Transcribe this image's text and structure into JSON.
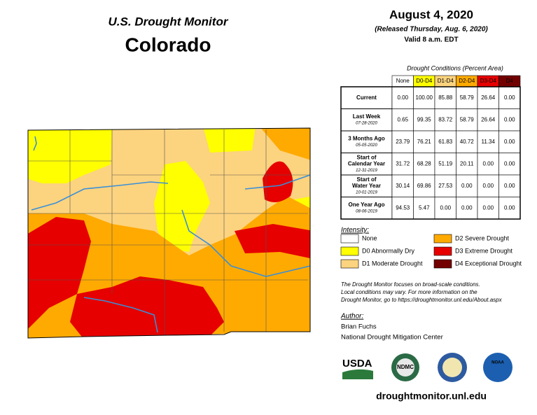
{
  "header": {
    "title": "U.S. Drought Monitor",
    "state": "Colorado"
  },
  "date": {
    "title": "August 4, 2020",
    "released": "(Released Thursday, Aug. 6, 2020)",
    "valid": "Valid 8 a.m. EDT"
  },
  "table": {
    "caption": "Drought Conditions (Percent Area)",
    "columns": [
      "None",
      "D0-D4",
      "D1-D4",
      "D2-D4",
      "D3-D4",
      "D4"
    ],
    "rows": [
      {
        "label": [
          "Current"
        ],
        "values": [
          "0.00",
          "100.00",
          "85.88",
          "58.79",
          "26.64",
          "0.00"
        ]
      },
      {
        "label": [
          "Last Week"
        ],
        "date": "07-28-2020",
        "values": [
          "0.65",
          "99.35",
          "83.72",
          "58.79",
          "26.64",
          "0.00"
        ]
      },
      {
        "label": [
          "3 Months Ago"
        ],
        "date": "05-05-2020",
        "values": [
          "23.79",
          "76.21",
          "61.83",
          "40.72",
          "11.34",
          "0.00"
        ]
      },
      {
        "label": [
          "Start of",
          "Calendar Year"
        ],
        "date": "12-31-2019",
        "values": [
          "31.72",
          "68.28",
          "51.19",
          "20.11",
          "0.00",
          "0.00"
        ]
      },
      {
        "label": [
          "Start of",
          "Water Year"
        ],
        "date": "10-01-2019",
        "values": [
          "30.14",
          "69.86",
          "27.53",
          "0.00",
          "0.00",
          "0.00"
        ]
      },
      {
        "label": [
          "One Year Ago"
        ],
        "date": "08-06-2019",
        "values": [
          "94.53",
          "5.47",
          "0.00",
          "0.00",
          "0.00",
          "0.00"
        ]
      }
    ]
  },
  "legend": {
    "title": "Intensity:",
    "items": [
      {
        "label": "None",
        "color": "#ffffff"
      },
      {
        "label": "D0 Abnormally Dry",
        "color": "#ffff00"
      },
      {
        "label": "D1 Moderate Drought",
        "color": "#fcd37f"
      },
      {
        "label": "D2 Severe Drought",
        "color": "#ffaa00"
      },
      {
        "label": "D3 Extreme Drought",
        "color": "#e60000"
      },
      {
        "label": "D4 Exceptional Drought",
        "color": "#730000"
      }
    ]
  },
  "note": [
    "The Drought Monitor focuses on broad-scale conditions.",
    "Local conditions may vary. For more information on the",
    "Drought Monitor, go to https://droughtmonitor.unl.edu/About.aspx"
  ],
  "author": {
    "title": "Author:",
    "name": "Brian Fuchs",
    "org": "National Drought Mitigation Center"
  },
  "logos": [
    "USDA",
    "NDMC",
    "NOAA"
  ],
  "url": "droughtmonitor.unl.edu"
}
